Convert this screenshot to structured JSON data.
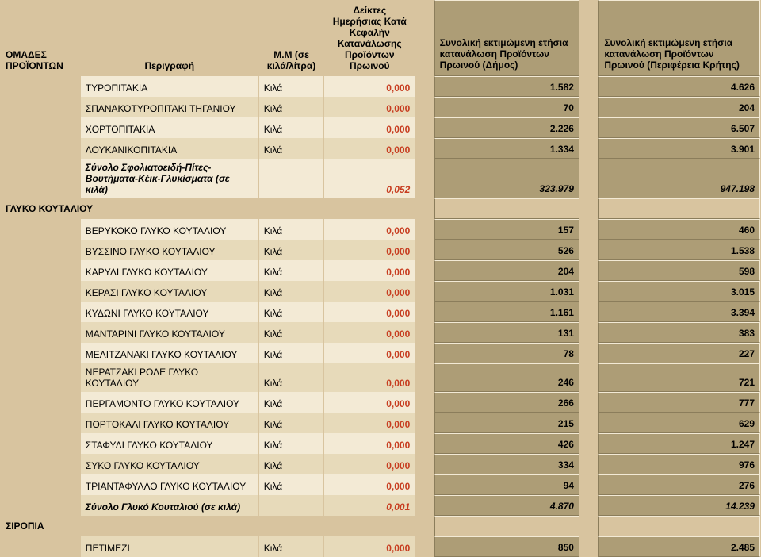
{
  "header": {
    "col1": "ΟΜΑΔΕΣ ΠΡΟΪΟΝΤΩΝ",
    "col2": "Περιγραφή",
    "col3": "Μ.Μ (σε κιλά/λίτρα)",
    "col4": "Δείκτες Ημερήσιας Κατά Κεφαλήν Κατανάλωσης Προϊόντων Πρωινού",
    "col6": "Συνολική εκτιμώμενη ετήσια κατανάλωση Προϊόντων Πρωινού (Δήμος)",
    "col8": "Συνολική εκτιμώμενη ετήσια κατανάλωση Προϊόντων Πρωινού (Περιφέρεια Κρήτης)"
  },
  "rows": [
    {
      "type": "data",
      "alt": "a",
      "desc": "ΤΥΡΟΠΙΤΑΚΙΑ",
      "unit": "Κιλά",
      "index": "0,000",
      "v1": "1.582",
      "v2": "4.626"
    },
    {
      "type": "data",
      "alt": "b",
      "desc": "ΣΠΑΝΑΚΟΤΥΡΟΠΙΤΑΚΙ ΤΗΓΑΝΙΟΥ",
      "unit": "Κιλά",
      "index": "0,000",
      "v1": "70",
      "v2": "204"
    },
    {
      "type": "data",
      "alt": "a",
      "desc": "ΧΟΡΤΟΠΙΤΑΚΙΑ",
      "unit": "Κιλά",
      "index": "0,000",
      "v1": "2.226",
      "v2": "6.507"
    },
    {
      "type": "data",
      "alt": "b",
      "desc": "ΛΟΥΚΑΝΙΚΟΠΙΤΑΚΙΑ",
      "unit": "Κιλά",
      "index": "0,000",
      "v1": "1.334",
      "v2": "3.901"
    },
    {
      "type": "subtotal",
      "alt": "a",
      "desc": "Σύνολο Σφολιατοειδή-Πίτες-Βουτήματα-Κέικ-Γλυκίσματα (σε κιλά)",
      "unit": "",
      "index": "0,052",
      "v1": "323.979",
      "v2": "947.198"
    },
    {
      "type": "group",
      "label": "ΓΛΥΚΟ ΚΟΥΤΑΛΙΟΥ"
    },
    {
      "type": "data",
      "alt": "a",
      "desc": "ΒΕΡΥΚΟΚΟ ΓΛΥΚΟ ΚΟΥΤΑΛΙΟΥ",
      "unit": "Κιλά",
      "index": "0,000",
      "v1": "157",
      "v2": "460"
    },
    {
      "type": "data",
      "alt": "b",
      "desc": "ΒΥΣΣΙΝΟ ΓΛΥΚΟ ΚΟΥΤΑΛΙΟΥ",
      "unit": "Κιλά",
      "index": "0,000",
      "v1": "526",
      "v2": "1.538"
    },
    {
      "type": "data",
      "alt": "a",
      "desc": "ΚΑΡΥΔΙ ΓΛΥΚΟ ΚΟΥΤΑΛΙΟΥ",
      "unit": "Κιλά",
      "index": "0,000",
      "v1": "204",
      "v2": "598"
    },
    {
      "type": "data",
      "alt": "b",
      "desc": "ΚΕΡΑΣΙ ΓΛΥΚΟ ΚΟΥΤΑΛΙΟΥ",
      "unit": "Κιλά",
      "index": "0,000",
      "v1": "1.031",
      "v2": "3.015"
    },
    {
      "type": "data",
      "alt": "a",
      "desc": "ΚΥΔΩΝΙ ΓΛΥΚΟ ΚΟΥΤΑΛΙΟΥ",
      "unit": "Κιλά",
      "index": "0,000",
      "v1": "1.161",
      "v2": "3.394"
    },
    {
      "type": "data",
      "alt": "b",
      "desc": "ΜΑΝΤΑΡΙΝΙ ΓΛΥΚΟ ΚΟΥΤΑΛΙΟΥ",
      "unit": "Κιλά",
      "index": "0,000",
      "v1": "131",
      "v2": "383"
    },
    {
      "type": "data",
      "alt": "a",
      "desc": "ΜΕΛΙΤΖΑΝΑΚΙ ΓΛΥΚΟ ΚΟΥΤΑΛΙΟΥ",
      "unit": "Κιλά",
      "index": "0,000",
      "v1": "78",
      "v2": "227"
    },
    {
      "type": "data",
      "alt": "b",
      "desc": "ΝΕΡΑΤΖΑΚΙ ΡΟΛΕ ΓΛΥΚΟ ΚΟΥΤΑΛΙΟΥ",
      "unit": "Κιλά",
      "index": "0,000",
      "v1": "246",
      "v2": "721"
    },
    {
      "type": "data",
      "alt": "a",
      "desc": "ΠΕΡΓΑΜΟΝΤΟ ΓΛΥΚΟ ΚΟΥΤΑΛΙΟΥ",
      "unit": "Κιλά",
      "index": "0,000",
      "v1": "266",
      "v2": "777"
    },
    {
      "type": "data",
      "alt": "b",
      "desc": "ΠΟΡΤΟΚΑΛΙ ΓΛΥΚΟ ΚΟΥΤΑΛΙΟΥ",
      "unit": "Κιλά",
      "index": "0,000",
      "v1": "215",
      "v2": "629"
    },
    {
      "type": "data",
      "alt": "a",
      "desc": "ΣΤΑΦΥΛΙ ΓΛΥΚΟ ΚΟΥΤΑΛΙΟΥ",
      "unit": "Κιλά",
      "index": "0,000",
      "v1": "426",
      "v2": "1.247"
    },
    {
      "type": "data",
      "alt": "b",
      "desc": "ΣΥΚΟ ΓΛΥΚΟ ΚΟΥΤΑΛΙΟΥ",
      "unit": "Κιλά",
      "index": "0,000",
      "v1": "334",
      "v2": "976"
    },
    {
      "type": "data",
      "alt": "a",
      "desc": "ΤΡΙΑΝΤΑΦΥΛΛΟ ΓΛΥΚΟ ΚΟΥΤΑΛΙΟΥ",
      "unit": "Κιλά",
      "index": "0,000",
      "v1": "94",
      "v2": "276"
    },
    {
      "type": "subtotal",
      "alt": "b",
      "desc": "Σύνολο Γλυκό Κουταλιού (σε κιλά)",
      "unit": "",
      "index": "0,001",
      "v1": "4.870",
      "v2": "14.239"
    },
    {
      "type": "group",
      "label": "ΣΙΡΟΠΙΑ"
    },
    {
      "type": "data",
      "alt": "b",
      "desc": "ΠΕΤΙΜΕΖΙ",
      "unit": "Κιλά",
      "index": "0,000",
      "v1": "850",
      "v2": "2.485"
    }
  ]
}
